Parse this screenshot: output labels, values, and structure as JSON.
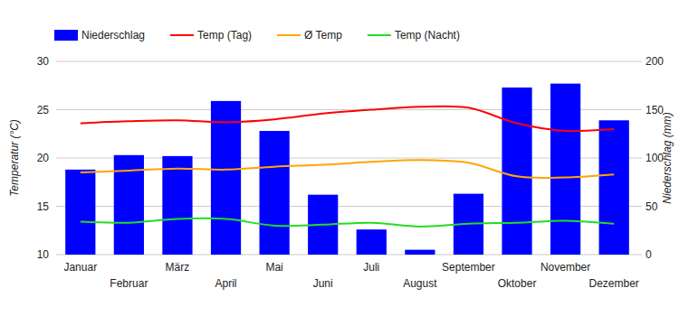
{
  "chart_data": {
    "type": "bar",
    "categories": [
      "Januar",
      "Februar",
      "März",
      "April",
      "Mai",
      "Juni",
      "Juli",
      "August",
      "September",
      "Oktober",
      "November",
      "Dezember"
    ],
    "series": [
      {
        "name": "Niederschlag",
        "type": "bar",
        "axis": "y2",
        "color": "#0000ff",
        "values": [
          88,
          103,
          102,
          159,
          128,
          62,
          26,
          5,
          63,
          173,
          177,
          139
        ]
      },
      {
        "name": "Temp (Tag)",
        "type": "line",
        "color": "#ff0000",
        "line_style": "smooth",
        "values": [
          23.6,
          23.8,
          23.9,
          23.7,
          24.0,
          24.6,
          25.0,
          25.3,
          25.2,
          23.6,
          22.8,
          23.0
        ]
      },
      {
        "name": "Ø Temp",
        "type": "line",
        "color": "#ffa500",
        "line_style": "smooth",
        "values": [
          18.5,
          18.7,
          18.9,
          18.8,
          19.1,
          19.3,
          19.6,
          19.8,
          19.5,
          18.1,
          18.0,
          18.3
        ]
      },
      {
        "name": "Temp (Nacht)",
        "type": "line",
        "color": "#22dd22",
        "line_style": "smooth",
        "values": [
          13.4,
          13.3,
          13.7,
          13.7,
          13.0,
          13.1,
          13.3,
          12.9,
          13.2,
          13.3,
          13.5,
          13.2
        ]
      }
    ],
    "y_label": "Temperatur (°C)",
    "y2_label": "Niederschlag (mm)",
    "ylim": [
      10,
      30
    ],
    "yticks": [
      10,
      15,
      20,
      25,
      30
    ],
    "y2lim": [
      0,
      200
    ],
    "y2ticks": [
      0,
      50,
      100,
      150,
      200
    ],
    "grid": true,
    "legend": "top"
  }
}
